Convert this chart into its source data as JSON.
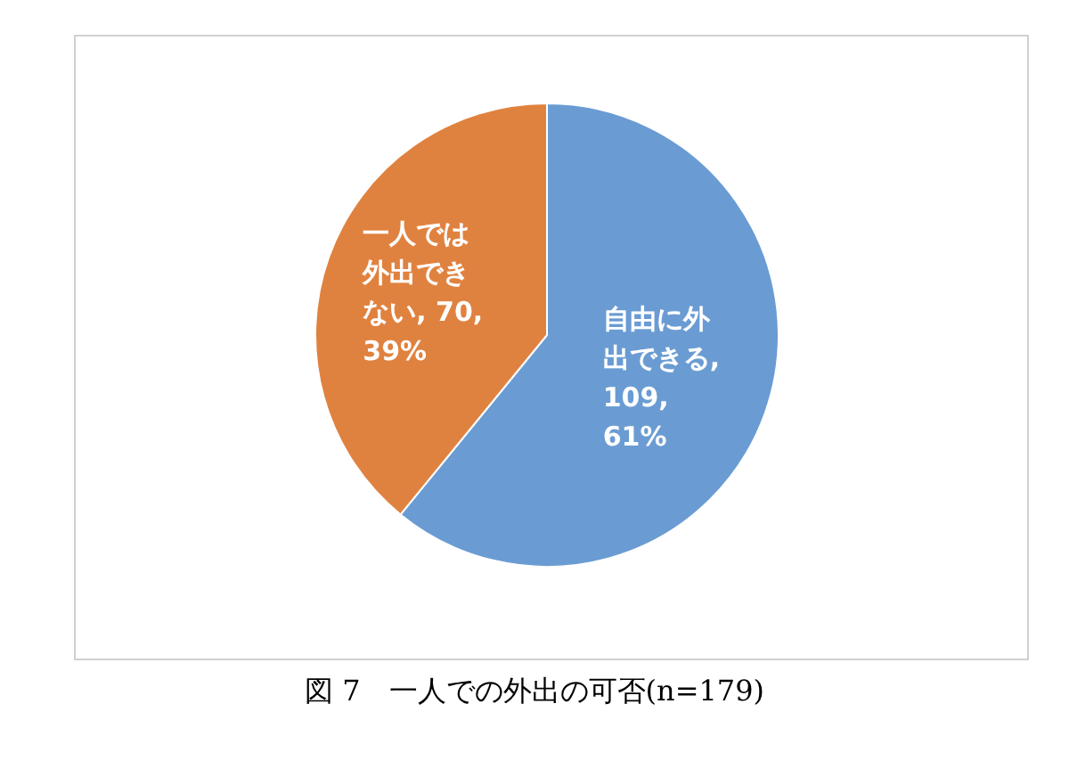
{
  "chart_data": {
    "type": "pie",
    "title": "図 7　一人での外出の可否(n=179)",
    "categories": [
      "自由に外出できる",
      "一人では外出できない"
    ],
    "values": [
      109,
      70
    ],
    "colors": [
      "#6a9cd3",
      "#e0823f"
    ],
    "value_labels": [
      ", 109, 61%",
      ", 70, 39%"
    ],
    "legend": false
  }
}
